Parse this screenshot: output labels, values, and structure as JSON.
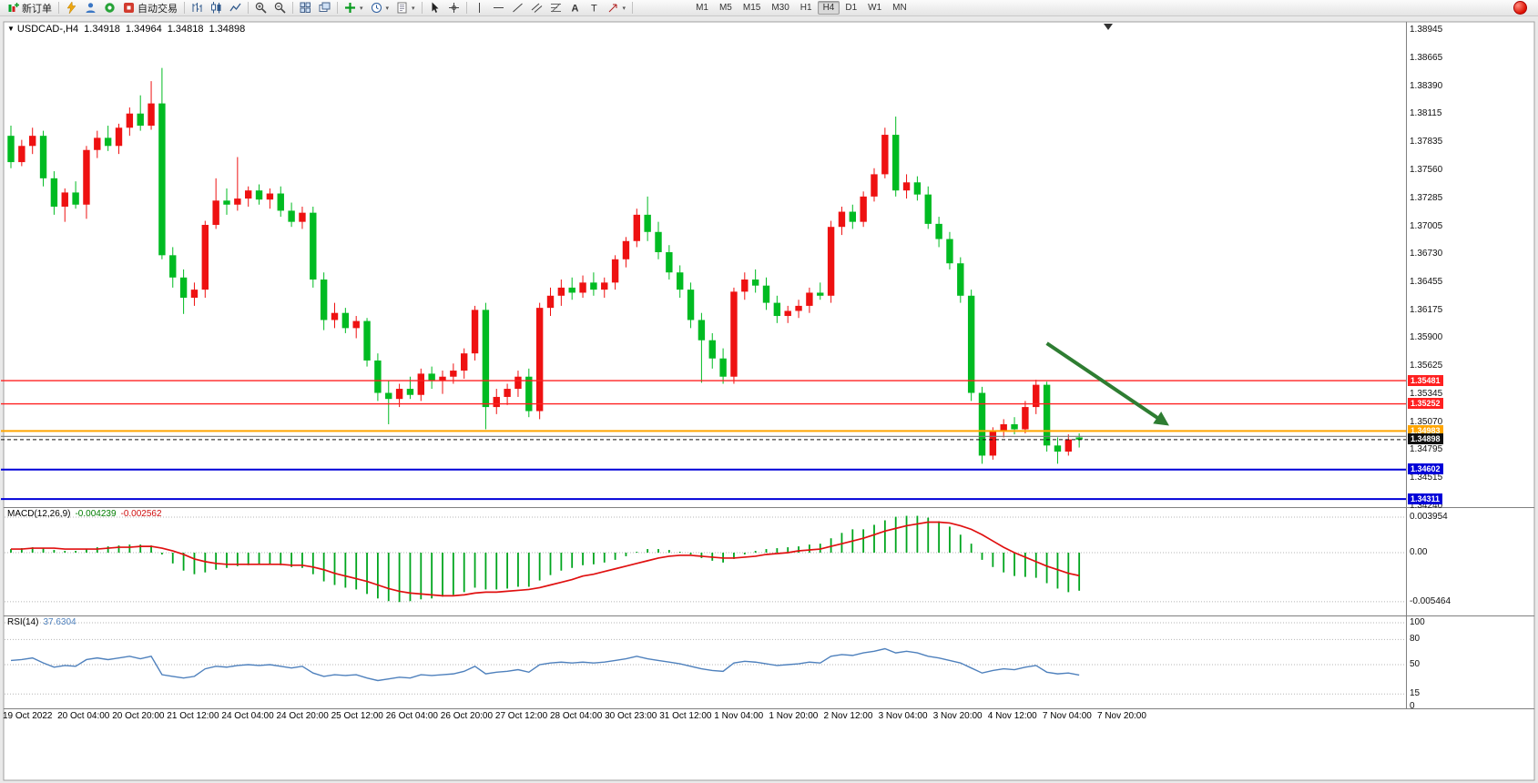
{
  "toolbar": {
    "new_order_label": "新订单",
    "autotrading_label": "自动交易",
    "timeframes": [
      "M1",
      "M5",
      "M15",
      "M30",
      "H1",
      "H4",
      "D1",
      "W1",
      "MN"
    ],
    "active_timeframe": "H4"
  },
  "chart_header": {
    "symbol": "USDCAD-,H4",
    "open": "1.34918",
    "high": "1.34964",
    "low": "1.34818",
    "close": "1.34898"
  },
  "colors": {
    "bull": "#ee1111",
    "bear": "#00bb22",
    "macd_histogram": "#00a51e",
    "macd_signal": "#e01010",
    "rsi_line": "#4f81bd",
    "arrow": "#2e7d32",
    "axis_text": "#000000"
  },
  "chart_data": {
    "type": "candlestick",
    "symbol": "USDCAD",
    "timeframe": "H4",
    "y_axis_ticks": [
      "1.38945",
      "1.38665",
      "1.38390",
      "1.38115",
      "1.37835",
      "1.37560",
      "1.37285",
      "1.37005",
      "1.36730",
      "1.36455",
      "1.36175",
      "1.35900",
      "1.35625",
      "1.35345",
      "1.35070",
      "1.34795",
      "1.34515",
      "1.34240"
    ],
    "x_axis_ticks": [
      "19 Oct 2022",
      "20 Oct 04:00",
      "20 Oct 20:00",
      "21 Oct 12:00",
      "24 Oct 04:00",
      "24 Oct 20:00",
      "25 Oct 12:00",
      "26 Oct 04:00",
      "26 Oct 20:00",
      "27 Oct 12:00",
      "28 Oct 04:00",
      "30 Oct 23:00",
      "31 Oct 12:00",
      "1 Nov 04:00",
      "1 Nov 20:00",
      "2 Nov 12:00",
      "3 Nov 04:00",
      "3 Nov 20:00",
      "4 Nov 12:00",
      "7 Nov 04:00",
      "7 Nov 20:00"
    ],
    "candles": [
      [
        1.379,
        1.38,
        1.3758,
        1.3764
      ],
      [
        1.3764,
        1.3786,
        1.376,
        1.378
      ],
      [
        1.378,
        1.3798,
        1.3772,
        1.379
      ],
      [
        1.379,
        1.3795,
        1.374,
        1.3748
      ],
      [
        1.3748,
        1.3755,
        1.3712,
        1.372
      ],
      [
        1.372,
        1.3738,
        1.3705,
        1.3734
      ],
      [
        1.3734,
        1.3745,
        1.3718,
        1.3722
      ],
      [
        1.3722,
        1.378,
        1.3708,
        1.3776
      ],
      [
        1.3776,
        1.3795,
        1.3768,
        1.3788
      ],
      [
        1.3788,
        1.38,
        1.3775,
        1.378
      ],
      [
        1.378,
        1.3802,
        1.3772,
        1.3798
      ],
      [
        1.3798,
        1.3818,
        1.379,
        1.3812
      ],
      [
        1.3812,
        1.383,
        1.3795,
        1.38
      ],
      [
        1.38,
        1.3844,
        1.3796,
        1.3822
      ],
      [
        1.3822,
        1.3857,
        1.3668,
        1.3672
      ],
      [
        1.3672,
        1.368,
        1.364,
        1.365
      ],
      [
        1.365,
        1.3658,
        1.3614,
        1.363
      ],
      [
        1.363,
        1.3645,
        1.3622,
        1.3638
      ],
      [
        1.3638,
        1.3706,
        1.363,
        1.3702
      ],
      [
        1.3702,
        1.3748,
        1.3698,
        1.3726
      ],
      [
        1.3726,
        1.3738,
        1.3712,
        1.3722
      ],
      [
        1.3722,
        1.3769,
        1.3716,
        1.3728
      ],
      [
        1.3728,
        1.374,
        1.372,
        1.3736
      ],
      [
        1.3736,
        1.3742,
        1.3722,
        1.3727
      ],
      [
        1.3727,
        1.3738,
        1.3718,
        1.3733
      ],
      [
        1.3733,
        1.374,
        1.371,
        1.3716
      ],
      [
        1.3716,
        1.3724,
        1.37,
        1.3705
      ],
      [
        1.3705,
        1.372,
        1.3698,
        1.3714
      ],
      [
        1.3714,
        1.372,
        1.364,
        1.3648
      ],
      [
        1.3648,
        1.3655,
        1.3598,
        1.3608
      ],
      [
        1.3608,
        1.3625,
        1.36,
        1.3615
      ],
      [
        1.3615,
        1.362,
        1.3595,
        1.36
      ],
      [
        1.36,
        1.3612,
        1.359,
        1.3607
      ],
      [
        1.3607,
        1.361,
        1.3562,
        1.3568
      ],
      [
        1.3568,
        1.3575,
        1.3528,
        1.3536
      ],
      [
        1.3536,
        1.3548,
        1.3505,
        1.353
      ],
      [
        1.353,
        1.3545,
        1.3522,
        1.354
      ],
      [
        1.354,
        1.3552,
        1.353,
        1.3534
      ],
      [
        1.3534,
        1.356,
        1.3528,
        1.3555
      ],
      [
        1.3555,
        1.3562,
        1.354,
        1.3548
      ],
      [
        1.3548,
        1.3558,
        1.3535,
        1.3552
      ],
      [
        1.3552,
        1.3565,
        1.3545,
        1.3558
      ],
      [
        1.3558,
        1.358,
        1.355,
        1.3575
      ],
      [
        1.3575,
        1.3622,
        1.3568,
        1.3618
      ],
      [
        1.3618,
        1.3625,
        1.35,
        1.3522
      ],
      [
        1.3522,
        1.354,
        1.3515,
        1.3532
      ],
      [
        1.3532,
        1.3545,
        1.3524,
        1.354
      ],
      [
        1.354,
        1.3558,
        1.3532,
        1.3552
      ],
      [
        1.3552,
        1.356,
        1.3512,
        1.3518
      ],
      [
        1.3518,
        1.3625,
        1.351,
        1.362
      ],
      [
        1.362,
        1.364,
        1.3612,
        1.3632
      ],
      [
        1.3632,
        1.3648,
        1.3622,
        1.364
      ],
      [
        1.364,
        1.365,
        1.3628,
        1.3635
      ],
      [
        1.3635,
        1.3652,
        1.363,
        1.3645
      ],
      [
        1.3645,
        1.3655,
        1.3632,
        1.3638
      ],
      [
        1.3638,
        1.365,
        1.363,
        1.3645
      ],
      [
        1.3645,
        1.3672,
        1.3638,
        1.3668
      ],
      [
        1.3668,
        1.369,
        1.366,
        1.3686
      ],
      [
        1.3686,
        1.3718,
        1.368,
        1.3712
      ],
      [
        1.3712,
        1.373,
        1.3686,
        1.3695
      ],
      [
        1.3695,
        1.3705,
        1.3668,
        1.3675
      ],
      [
        1.3675,
        1.3682,
        1.3648,
        1.3655
      ],
      [
        1.3655,
        1.3662,
        1.363,
        1.3638
      ],
      [
        1.3638,
        1.3645,
        1.36,
        1.3608
      ],
      [
        1.3608,
        1.3615,
        1.3546,
        1.3588
      ],
      [
        1.3588,
        1.3595,
        1.356,
        1.357
      ],
      [
        1.357,
        1.358,
        1.3545,
        1.3552
      ],
      [
        1.3552,
        1.364,
        1.3545,
        1.3636
      ],
      [
        1.3636,
        1.3655,
        1.3628,
        1.3648
      ],
      [
        1.3648,
        1.3658,
        1.3635,
        1.3642
      ],
      [
        1.3642,
        1.365,
        1.3618,
        1.3625
      ],
      [
        1.3625,
        1.3632,
        1.3605,
        1.3612
      ],
      [
        1.3612,
        1.3622,
        1.3605,
        1.3617
      ],
      [
        1.3617,
        1.3628,
        1.361,
        1.3622
      ],
      [
        1.3622,
        1.364,
        1.3615,
        1.3635
      ],
      [
        1.3635,
        1.3645,
        1.3628,
        1.3632
      ],
      [
        1.3632,
        1.3706,
        1.3625,
        1.37
      ],
      [
        1.37,
        1.372,
        1.3692,
        1.3715
      ],
      [
        1.3715,
        1.3722,
        1.3698,
        1.3705
      ],
      [
        1.3705,
        1.3735,
        1.37,
        1.373
      ],
      [
        1.373,
        1.3758,
        1.3725,
        1.3752
      ],
      [
        1.3752,
        1.3798,
        1.3748,
        1.3791
      ],
      [
        1.3791,
        1.3809,
        1.373,
        1.3736
      ],
      [
        1.3736,
        1.3752,
        1.3728,
        1.3744
      ],
      [
        1.3744,
        1.375,
        1.3726,
        1.3732
      ],
      [
        1.3732,
        1.374,
        1.3698,
        1.3703
      ],
      [
        1.3703,
        1.371,
        1.368,
        1.3688
      ],
      [
        1.3688,
        1.3695,
        1.3658,
        1.3664
      ],
      [
        1.3664,
        1.367,
        1.3625,
        1.3632
      ],
      [
        1.3632,
        1.3638,
        1.3528,
        1.3536
      ],
      [
        1.3536,
        1.3542,
        1.3466,
        1.3474
      ],
      [
        1.3474,
        1.3502,
        1.347,
        1.3498
      ],
      [
        1.3498,
        1.351,
        1.3492,
        1.3505
      ],
      [
        1.3505,
        1.3512,
        1.3495,
        1.35
      ],
      [
        1.35,
        1.3528,
        1.3496,
        1.3522
      ],
      [
        1.3522,
        1.3549,
        1.3515,
        1.3544
      ],
      [
        1.3544,
        1.3547,
        1.3478,
        1.3484
      ],
      [
        1.3484,
        1.3492,
        1.3466,
        1.3478
      ],
      [
        1.3478,
        1.3495,
        1.3474,
        1.349
      ],
      [
        1.3492,
        1.3496,
        1.3482,
        1.34898
      ]
    ],
    "levels": [
      {
        "price": 1.35481,
        "label": "1.35481",
        "color": "#ff2020",
        "style": "solid",
        "width": 1.4
      },
      {
        "price": 1.35252,
        "label": "1.35252",
        "color": "#ff2020",
        "style": "solid",
        "width": 1.4
      },
      {
        "price": 1.34983,
        "label": "1.34983",
        "color": "#ffa500",
        "style": "solid",
        "width": 2
      },
      {
        "price": 1.3493,
        "label": "",
        "color": "#7a7a7a",
        "style": "solid",
        "width": 1.2
      },
      {
        "price": 1.34898,
        "label": "1.34898",
        "color": "#111111",
        "style": "dash",
        "width": 1
      },
      {
        "price": 1.34602,
        "label": "1.34602",
        "color": "#0000d8",
        "style": "solid",
        "width": 2
      },
      {
        "price": 1.34311,
        "label": "1.34311",
        "color": "#0000d8",
        "style": "solid",
        "width": 2
      }
    ],
    "arrow": {
      "from_bar": 96,
      "from_price": 1.3585,
      "to_bar": 107,
      "to_price": 1.3506
    },
    "indicators": {
      "macd": {
        "label": "MACD(12,26,9)",
        "value": "-0.004239",
        "signal": "-0.002562",
        "y_ticks": [
          "0.003954",
          "0.00",
          "-0.005464"
        ],
        "histogram": [
          0.0004,
          0.0005,
          0.0006,
          0.0005,
          0.0003,
          0.0002,
          0.0002,
          0.0004,
          0.0006,
          0.0007,
          0.0008,
          0.0009,
          0.0009,
          0.0008,
          -0.0002,
          -0.0012,
          -0.002,
          -0.0024,
          -0.0022,
          -0.0019,
          -0.0017,
          -0.0015,
          -0.0014,
          -0.0013,
          -0.0013,
          -0.0014,
          -0.0016,
          -0.0017,
          -0.0024,
          -0.0032,
          -0.0036,
          -0.0039,
          -0.0041,
          -0.0046,
          -0.0051,
          -0.0054,
          -0.0055,
          -0.0054,
          -0.0052,
          -0.0051,
          -0.0049,
          -0.0047,
          -0.0044,
          -0.0039,
          -0.0041,
          -0.0041,
          -0.004,
          -0.0038,
          -0.0038,
          -0.0031,
          -0.0025,
          -0.002,
          -0.0017,
          -0.0014,
          -0.0013,
          -0.0011,
          -0.0008,
          -0.0004,
          0.0001,
          0.0004,
          0.0004,
          0.0003,
          0.0001,
          -0.0002,
          -0.0006,
          -0.0009,
          -0.0011,
          -0.0007,
          -0.0002,
          0.0002,
          0.0004,
          0.0005,
          0.0006,
          0.0007,
          0.0009,
          0.001,
          0.0016,
          0.0022,
          0.0026,
          0.0026,
          0.0031,
          0.0036,
          0.004,
          0.0041,
          0.0041,
          0.0039,
          0.0035,
          0.0029,
          0.002,
          0.001,
          -0.0008,
          -0.0016,
          -0.0022,
          -0.0026,
          -0.0027,
          -0.0028,
          -0.0034,
          -0.004,
          -0.0044,
          -0.004239
        ],
        "signal_line": [
          0.0004,
          0.0004,
          0.0005,
          0.0005,
          0.0005,
          0.0004,
          0.0004,
          0.0004,
          0.0004,
          0.0005,
          0.0006,
          0.0006,
          0.0007,
          0.0007,
          0.0005,
          0.0002,
          -0.0002,
          -0.0007,
          -0.001,
          -0.0012,
          -0.0013,
          -0.0013,
          -0.0013,
          -0.0013,
          -0.0013,
          -0.0013,
          -0.0014,
          -0.0014,
          -0.0016,
          -0.0019,
          -0.0023,
          -0.0026,
          -0.0029,
          -0.0032,
          -0.0036,
          -0.004,
          -0.0043,
          -0.0045,
          -0.0046,
          -0.0047,
          -0.0048,
          -0.0048,
          -0.0047,
          -0.0045,
          -0.0044,
          -0.0044,
          -0.0043,
          -0.0042,
          -0.0041,
          -0.0039,
          -0.0036,
          -0.0033,
          -0.003,
          -0.0026,
          -0.0024,
          -0.0021,
          -0.0018,
          -0.0015,
          -0.0012,
          -0.0009,
          -0.0006,
          -0.0004,
          -0.0003,
          -0.0003,
          -0.0004,
          -0.0005,
          -0.0006,
          -0.0006,
          -0.0005,
          -0.0004,
          -0.0002,
          -0.0001,
          0.0,
          0.0002,
          0.0003,
          0.0004,
          0.0007,
          0.001,
          0.0013,
          0.0016,
          0.002,
          0.0024,
          0.0027,
          0.003,
          0.0032,
          0.0034,
          0.0034,
          0.0033,
          0.003,
          0.0026,
          0.002,
          0.0013,
          0.0006,
          0.0,
          -0.0005,
          -0.001,
          -0.0015,
          -0.0019,
          -0.0023,
          -0.002562
        ]
      },
      "rsi": {
        "label": "RSI(14)",
        "value": "37.6304",
        "y_ticks": [
          "100",
          "80",
          "50",
          "15",
          "0"
        ],
        "levels": [
          100,
          80,
          50,
          15
        ],
        "values": [
          55,
          56,
          58,
          52,
          47,
          49,
          48,
          56,
          58,
          56,
          58,
          60,
          57,
          60,
          38,
          36,
          34,
          36,
          45,
          48,
          47,
          49,
          50,
          49,
          50,
          48,
          46,
          48,
          40,
          36,
          38,
          37,
          38,
          34,
          31,
          33,
          35,
          34,
          38,
          37,
          38,
          39,
          42,
          48,
          39,
          41,
          42,
          44,
          41,
          50,
          52,
          53,
          52,
          53,
          52,
          53,
          55,
          57,
          60,
          57,
          55,
          53,
          51,
          48,
          45,
          43,
          42,
          52,
          54,
          53,
          51,
          49,
          50,
          51,
          53,
          52,
          60,
          62,
          61,
          64,
          66,
          69,
          64,
          66,
          64,
          60,
          58,
          55,
          52,
          46,
          40,
          43,
          45,
          44,
          47,
          49,
          41,
          39,
          40,
          37.63
        ]
      }
    }
  }
}
